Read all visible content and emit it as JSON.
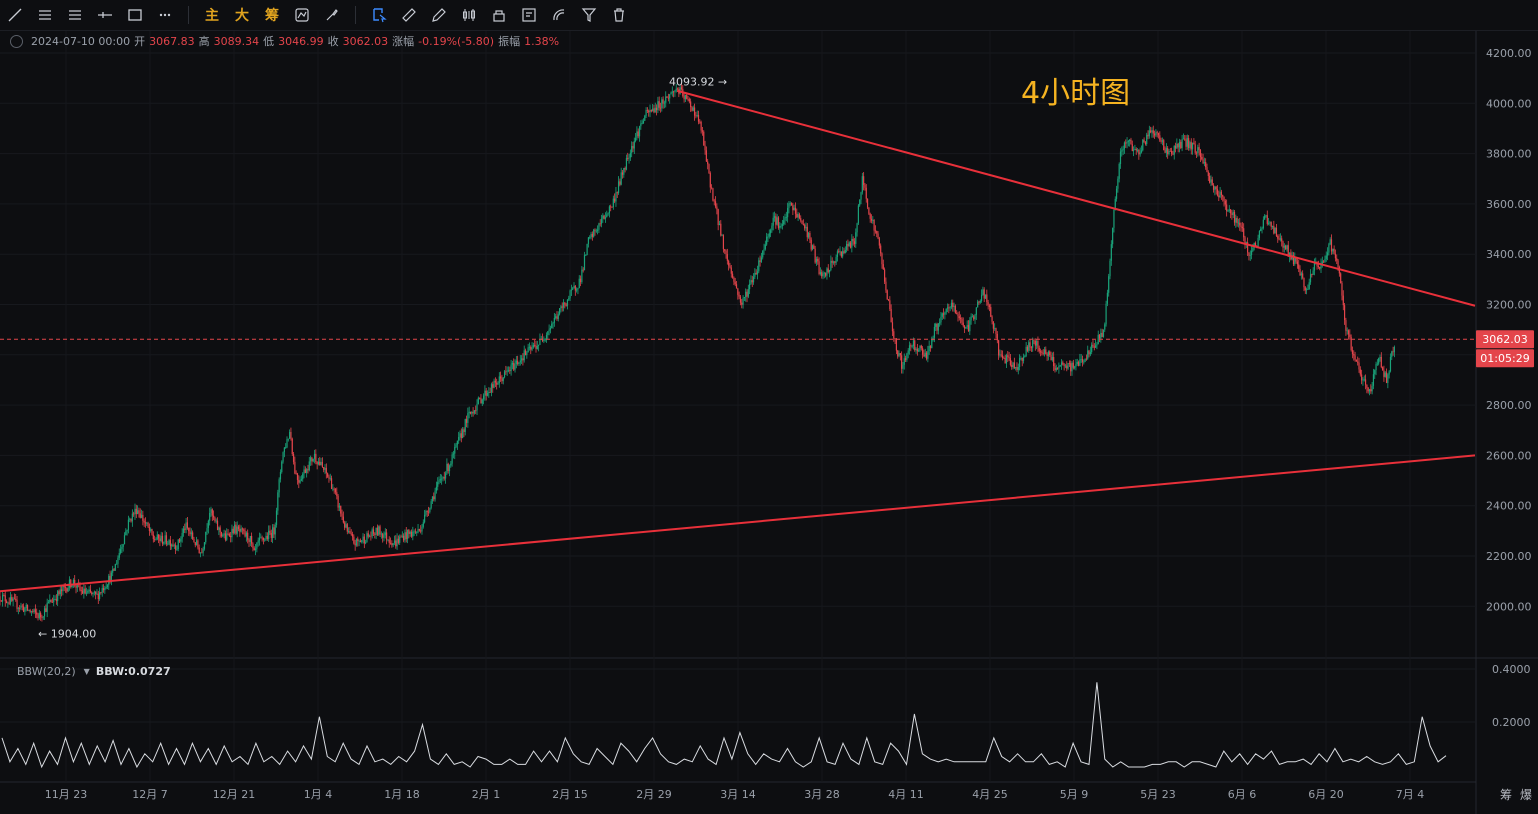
{
  "toolbar": {
    "tools": [
      "trend-line-icon",
      "horizontal-lines-icon",
      "parallel-channel-icon",
      "horizontal-ray-icon",
      "rectangle-icon",
      "more-icon"
    ],
    "text_buttons": [
      "主",
      "大",
      "筹"
    ],
    "tools2": [
      "auto-pattern-icon",
      "brush-icon",
      "magnet-select-icon",
      "ruler-icon",
      "pencil-icon",
      "candles-icon",
      "lock-icon",
      "note-icon",
      "fibonacci-icon",
      "filter-icon",
      "trash-icon"
    ]
  },
  "ohlc": {
    "date": "2024-07-10 00:00",
    "open_label": "开",
    "open": "3067.83",
    "high_label": "高",
    "high": "3089.34",
    "low_label": "低",
    "low": "3046.99",
    "close_label": "收",
    "close": "3062.03",
    "change_label": "涨幅",
    "change": "-0.19%(-5.80)",
    "amp_label": "振幅",
    "amp": "1.38%"
  },
  "colors": {
    "up": "#1aa37a",
    "down": "#e4454b",
    "trendline": "#e8303a",
    "accent": "#f5b321"
  },
  "chart_data": {
    "type": "candlestick",
    "title": "4小时图",
    "xlabel": "",
    "ylabel": "",
    "ylim": [
      1750,
      4250
    ],
    "y_ticks": [
      "4200.00",
      "4000.00",
      "3800.00",
      "3600.00",
      "3400.00",
      "3200.00",
      "3000.00",
      "2800.00",
      "2600.00",
      "2400.00",
      "2200.00",
      "2000.00"
    ],
    "x_ticks": [
      "11月 23",
      "12月 7",
      "12月 21",
      "1月 4",
      "1月 18",
      "2月 1",
      "2月 15",
      "2月 29",
      "3月 14",
      "3月 28",
      "4月 11",
      "4月 25",
      "5月 9",
      "5月 23",
      "6月 6",
      "6月 20",
      "7月 4"
    ],
    "price_path": [
      [
        0,
        2040
      ],
      [
        5,
        1960
      ],
      [
        6,
        2010
      ],
      [
        9,
        2100
      ],
      [
        10,
        2060
      ],
      [
        12,
        2040
      ],
      [
        14,
        2130
      ],
      [
        16,
        2340
      ],
      [
        17,
        2390
      ],
      [
        19,
        2270
      ],
      [
        21,
        2260
      ],
      [
        22,
        2240
      ],
      [
        23,
        2320
      ],
      [
        25,
        2210
      ],
      [
        26,
        2380
      ],
      [
        27,
        2310
      ],
      [
        28,
        2270
      ],
      [
        29,
        2310
      ],
      [
        31,
        2270
      ],
      [
        31.5,
        2200
      ],
      [
        32,
        2250
      ],
      [
        34,
        2300
      ],
      [
        35,
        2600
      ],
      [
        36,
        2700
      ],
      [
        36.5,
        2550
      ],
      [
        37,
        2500
      ],
      [
        39,
        2600
      ],
      [
        41,
        2500
      ],
      [
        43,
        2300
      ],
      [
        44,
        2250
      ],
      [
        47,
        2300
      ],
      [
        49,
        2250
      ],
      [
        50,
        2280
      ],
      [
        52,
        2300
      ],
      [
        54,
        2460
      ],
      [
        56,
        2580
      ],
      [
        58,
        2750
      ],
      [
        60,
        2840
      ],
      [
        62,
        2900
      ],
      [
        65,
        3000
      ],
      [
        67,
        3050
      ],
      [
        70,
        3200
      ],
      [
        72,
        3300
      ],
      [
        73,
        3450
      ],
      [
        76,
        3600
      ],
      [
        78,
        3800
      ],
      [
        80,
        3950
      ],
      [
        82,
        4000
      ],
      [
        84,
        4060
      ],
      [
        86,
        3980
      ],
      [
        87,
        3900
      ],
      [
        88,
        3700
      ],
      [
        89,
        3550
      ],
      [
        90,
        3400
      ],
      [
        91,
        3300
      ],
      [
        92,
        3200
      ],
      [
        94,
        3350
      ],
      [
        96,
        3550
      ],
      [
        97,
        3500
      ],
      [
        98,
        3600
      ],
      [
        99,
        3550
      ],
      [
        100,
        3500
      ],
      [
        101,
        3400
      ],
      [
        102,
        3300
      ],
      [
        104,
        3400
      ],
      [
        106,
        3450
      ],
      [
        107,
        3700
      ],
      [
        108,
        3550
      ],
      [
        109,
        3450
      ],
      [
        111,
        3050
      ],
      [
        112,
        2950
      ],
      [
        113,
        3050
      ],
      [
        115,
        3000
      ],
      [
        116,
        3100
      ],
      [
        118,
        3200
      ],
      [
        119,
        3150
      ],
      [
        120,
        3100
      ],
      [
        122,
        3250
      ],
      [
        123,
        3150
      ],
      [
        124,
        3000
      ],
      [
        126,
        2950
      ],
      [
        128,
        3050
      ],
      [
        130,
        3000
      ],
      [
        131,
        2950
      ],
      [
        133,
        2950
      ],
      [
        135,
        3000
      ],
      [
        136,
        3050
      ],
      [
        137,
        3100
      ],
      [
        138,
        3500
      ],
      [
        139,
        3800
      ],
      [
        140,
        3850
      ],
      [
        141,
        3800
      ],
      [
        143,
        3900
      ],
      [
        144,
        3850
      ],
      [
        145,
        3800
      ],
      [
        147,
        3850
      ],
      [
        149,
        3800
      ],
      [
        150,
        3700
      ],
      [
        151,
        3650
      ],
      [
        153,
        3550
      ],
      [
        154,
        3500
      ],
      [
        155,
        3400
      ],
      [
        156,
        3450
      ],
      [
        157,
        3550
      ],
      [
        158,
        3500
      ],
      [
        159,
        3450
      ],
      [
        160,
        3400
      ],
      [
        161,
        3350
      ],
      [
        162,
        3250
      ],
      [
        163,
        3350
      ],
      [
        164,
        3350
      ],
      [
        165,
        3450
      ],
      [
        166,
        3350
      ],
      [
        167,
        3100
      ],
      [
        168,
        3000
      ],
      [
        169,
        2900
      ],
      [
        170,
        2850
      ],
      [
        171,
        3000
      ],
      [
        172,
        2900
      ],
      [
        173,
        3050
      ]
    ],
    "annotations": [
      {
        "text": "4093.92",
        "value": 4093.92,
        "kind": "high"
      },
      {
        "text": "1904.00",
        "value": 1904.0,
        "kind": "low"
      }
    ],
    "trendlines": [
      {
        "name": "support",
        "from": [
          0,
          2060
        ],
        "to": [
          183,
          2600
        ]
      },
      {
        "name": "resistance",
        "from": [
          84,
          4050
        ],
        "to": [
          183,
          3195
        ]
      }
    ],
    "last_price": "3062.03",
    "countdown": "01:05:29",
    "indicator": {
      "name": "BBW(20,2)",
      "value_label": "BBW:0.0727",
      "ylim": [
        0,
        0.45
      ],
      "y_ticks": [
        "0.4000",
        "0.2000"
      ],
      "values": [
        0.14,
        0.05,
        0.1,
        0.04,
        0.12,
        0.03,
        0.09,
        0.04,
        0.14,
        0.05,
        0.12,
        0.04,
        0.11,
        0.05,
        0.13,
        0.04,
        0.1,
        0.03,
        0.08,
        0.05,
        0.12,
        0.04,
        0.1,
        0.04,
        0.12,
        0.05,
        0.1,
        0.04,
        0.11,
        0.05,
        0.07,
        0.04,
        0.12,
        0.05,
        0.07,
        0.04,
        0.09,
        0.05,
        0.11,
        0.06,
        0.22,
        0.07,
        0.05,
        0.12,
        0.06,
        0.04,
        0.11,
        0.05,
        0.06,
        0.04,
        0.07,
        0.05,
        0.09,
        0.19,
        0.06,
        0.04,
        0.08,
        0.04,
        0.05,
        0.03,
        0.07,
        0.06,
        0.04,
        0.04,
        0.06,
        0.04,
        0.04,
        0.09,
        0.05,
        0.09,
        0.05,
        0.14,
        0.08,
        0.05,
        0.04,
        0.1,
        0.07,
        0.04,
        0.12,
        0.09,
        0.05,
        0.1,
        0.14,
        0.08,
        0.05,
        0.04,
        0.06,
        0.05,
        0.11,
        0.06,
        0.04,
        0.14,
        0.06,
        0.16,
        0.08,
        0.04,
        0.08,
        0.06,
        0.05,
        0.1,
        0.05,
        0.03,
        0.05,
        0.14,
        0.05,
        0.04,
        0.12,
        0.06,
        0.04,
        0.14,
        0.05,
        0.04,
        0.12,
        0.09,
        0.04,
        0.23,
        0.08,
        0.06,
        0.05,
        0.06,
        0.05,
        0.05,
        0.05,
        0.05,
        0.05,
        0.14,
        0.07,
        0.05,
        0.08,
        0.05,
        0.05,
        0.08,
        0.04,
        0.05,
        0.03,
        0.12,
        0.05,
        0.04,
        0.35,
        0.06,
        0.03,
        0.05,
        0.03,
        0.03,
        0.03,
        0.04,
        0.04,
        0.05,
        0.05,
        0.03,
        0.05,
        0.05,
        0.04,
        0.03,
        0.09,
        0.05,
        0.08,
        0.04,
        0.08,
        0.06,
        0.09,
        0.04,
        0.05,
        0.05,
        0.06,
        0.04,
        0.08,
        0.05,
        0.1,
        0.05,
        0.06,
        0.05,
        0.07,
        0.05,
        0.04,
        0.05,
        0.08,
        0.04,
        0.05,
        0.22,
        0.11,
        0.05,
        0.0727
      ]
    }
  },
  "bottom_buttons": [
    "筹",
    "爆"
  ]
}
